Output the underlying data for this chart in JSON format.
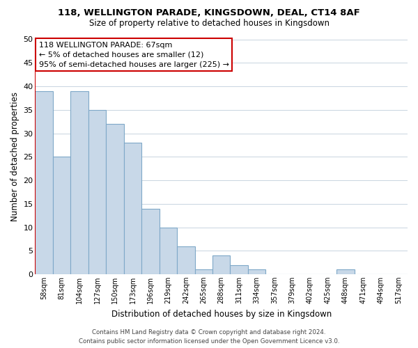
{
  "title": "118, WELLINGTON PARADE, KINGSDOWN, DEAL, CT14 8AF",
  "subtitle": "Size of property relative to detached houses in Kingsdown",
  "xlabel": "Distribution of detached houses by size in Kingsdown",
  "ylabel": "Number of detached properties",
  "bar_labels": [
    "58sqm",
    "81sqm",
    "104sqm",
    "127sqm",
    "150sqm",
    "173sqm",
    "196sqm",
    "219sqm",
    "242sqm",
    "265sqm",
    "288sqm",
    "311sqm",
    "334sqm",
    "357sqm",
    "379sqm",
    "402sqm",
    "425sqm",
    "448sqm",
    "471sqm",
    "494sqm",
    "517sqm"
  ],
  "bar_values": [
    39,
    25,
    39,
    35,
    32,
    28,
    14,
    10,
    6,
    1,
    4,
    2,
    1,
    0,
    0,
    0,
    0,
    1,
    0,
    0,
    0
  ],
  "bar_color": "#c8d8e8",
  "bar_edge_color": "#7fa8c8",
  "ylim": [
    0,
    50
  ],
  "yticks": [
    0,
    5,
    10,
    15,
    20,
    25,
    30,
    35,
    40,
    45,
    50
  ],
  "vline_color": "#cc0000",
  "annotation_title": "118 WELLINGTON PARADE: 67sqm",
  "annotation_line1": "← 5% of detached houses are smaller (12)",
  "annotation_line2": "95% of semi-detached houses are larger (225) →",
  "annotation_box_color": "#ffffff",
  "annotation_box_edge": "#cc0000",
  "footer_line1": "Contains HM Land Registry data © Crown copyright and database right 2024.",
  "footer_line2": "Contains public sector information licensed under the Open Government Licence v3.0.",
  "bg_color": "#ffffff",
  "grid_color": "#c8d4e0"
}
